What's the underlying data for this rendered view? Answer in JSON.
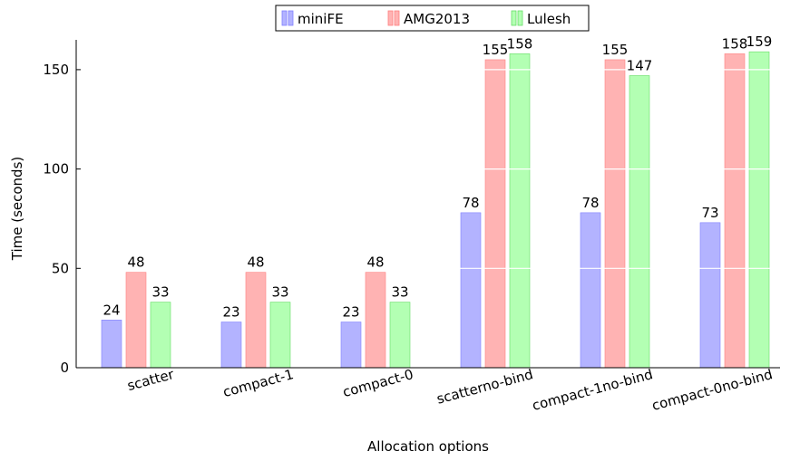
{
  "chart_data": {
    "type": "bar",
    "title": "",
    "xlabel": "Allocation options",
    "ylabel": "Time (seconds)",
    "categories": [
      "scatter",
      "compact-1",
      "compact-0",
      "scatterno-bind",
      "compact-1no-bind",
      "compact-0no-bind"
    ],
    "series": [
      {
        "name": "miniFE",
        "values": [
          24,
          23,
          23,
          78,
          78,
          73
        ],
        "color": "#b3b3ff",
        "edge": "#8080ff"
      },
      {
        "name": "AMG2013",
        "values": [
          48,
          48,
          48,
          155,
          155,
          158
        ],
        "color": "#ffb3b3",
        "edge": "#ff8080"
      },
      {
        "name": "Lulesh",
        "values": [
          33,
          33,
          33,
          158,
          147,
          159
        ],
        "color": "#b3ffb3",
        "edge": "#66dd66"
      }
    ],
    "yticks": [
      0,
      50,
      100,
      150
    ],
    "ylim": [
      0,
      165
    ],
    "legend_position": "top-center",
    "grid": "horizontal-white-over-bars"
  }
}
